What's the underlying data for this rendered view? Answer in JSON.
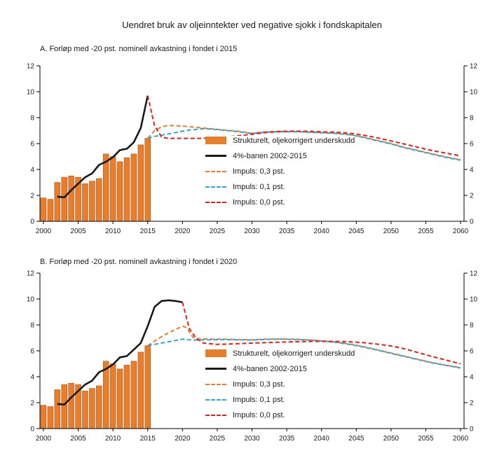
{
  "title": "Uendret bruk av oljeinntekter ved negative sjokk i fondskapitalen",
  "chart_data": [
    {
      "type": "bar+line",
      "panel_label": "A. Forløp med -20 pst. nominell avkastning i fondet i 2015",
      "ylim": [
        0,
        12
      ],
      "y_ticks": [
        0,
        2,
        4,
        6,
        8,
        10,
        12
      ],
      "x_ticks": [
        2000,
        2005,
        2010,
        2015,
        2020,
        2025,
        2030,
        2035,
        2040,
        2045,
        2050,
        2055,
        2060
      ],
      "legend_position": "inside-center",
      "grid": false,
      "bars": {
        "name": "Strukturelt, oljekorrigert underskudd",
        "color": "#e87d2b",
        "border": "#a9561a",
        "years": [
          2000,
          2001,
          2002,
          2003,
          2004,
          2005,
          2006,
          2007,
          2008,
          2009,
          2010,
          2011,
          2012,
          2013,
          2014,
          2015
        ],
        "values": [
          1.8,
          1.7,
          3.0,
          3.4,
          3.5,
          3.4,
          2.9,
          3.1,
          3.3,
          5.2,
          5.0,
          4.6,
          4.9,
          5.2,
          5.9,
          6.4
        ]
      },
      "series": [
        {
          "name": "4%-banen 2002-2015",
          "color": "#1a1a1a",
          "dash": "",
          "width": 2.6,
          "x": [
            2002,
            2003,
            2004,
            2005,
            2006,
            2007,
            2008,
            2009,
            2010,
            2011,
            2012,
            2013,
            2014,
            2015
          ],
          "y": [
            1.9,
            1.85,
            2.4,
            2.9,
            3.4,
            3.7,
            4.35,
            4.6,
            4.95,
            5.5,
            5.6,
            6.1,
            7.2,
            9.7
          ]
        },
        {
          "name": "Impuls: 0,3 pst.",
          "color": "#e87d2b",
          "dash": "6 3.5",
          "width": 2,
          "x": [
            2015,
            2016,
            2017,
            2018,
            2020,
            2022,
            2024,
            2026,
            2028,
            2030,
            2032,
            2034,
            2036,
            2038,
            2040,
            2042,
            2044,
            2046,
            2048,
            2050,
            2052,
            2054,
            2056,
            2058,
            2060
          ],
          "y": [
            6.4,
            7.0,
            7.3,
            7.4,
            7.35,
            7.25,
            7.15,
            7.05,
            6.95,
            6.8,
            6.9,
            6.95,
            6.95,
            6.9,
            6.85,
            6.8,
            6.7,
            6.5,
            6.25,
            6.0,
            5.7,
            5.45,
            5.2,
            4.95,
            4.75
          ]
        },
        {
          "name": "Impuls: 0,1 pst.",
          "color": "#2aa7dd",
          "dash": "6 3.5",
          "width": 2,
          "x": [
            2015,
            2016,
            2017,
            2018,
            2019,
            2020,
            2021,
            2022,
            2023,
            2024,
            2026,
            2028,
            2030,
            2032,
            2034,
            2036,
            2038,
            2040,
            2042,
            2044,
            2046,
            2048,
            2050,
            2052,
            2054,
            2056,
            2058,
            2060
          ],
          "y": [
            6.4,
            6.55,
            6.65,
            6.75,
            6.85,
            6.95,
            7.05,
            7.1,
            7.15,
            7.12,
            7.02,
            6.92,
            6.78,
            6.88,
            6.92,
            6.92,
            6.88,
            6.83,
            6.78,
            6.68,
            6.48,
            6.22,
            5.97,
            5.67,
            5.42,
            5.17,
            4.92,
            4.72
          ]
        },
        {
          "name": "Impuls: 0,0 pst.",
          "color": "#e32119",
          "dash": "6 3.5",
          "width": 2,
          "x": [
            2015,
            2016,
            2017,
            2018,
            2020,
            2022,
            2024,
            2026,
            2028,
            2030,
            2032,
            2034,
            2036,
            2038,
            2040,
            2042,
            2044,
            2046,
            2048,
            2050,
            2052,
            2054,
            2056,
            2058,
            2060
          ],
          "y": [
            9.7,
            7.35,
            6.5,
            6.4,
            6.4,
            6.4,
            6.42,
            6.5,
            6.6,
            6.72,
            6.85,
            6.92,
            6.95,
            6.95,
            6.9,
            6.88,
            6.8,
            6.65,
            6.45,
            6.2,
            5.95,
            5.7,
            5.45,
            5.25,
            5.05
          ]
        }
      ]
    },
    {
      "type": "bar+line",
      "panel_label": "B. Forløp med -20 pst. nominell avkastning i fondet i 2020",
      "ylim": [
        0,
        12
      ],
      "y_ticks": [
        0,
        2,
        4,
        6,
        8,
        10,
        12
      ],
      "x_ticks": [
        2000,
        2005,
        2010,
        2015,
        2020,
        2025,
        2030,
        2035,
        2040,
        2045,
        2050,
        2055,
        2060
      ],
      "legend_position": "inside-center",
      "grid": false,
      "bars": {
        "name": "Strukturelt, oljekorrigert underskudd",
        "color": "#e87d2b",
        "border": "#a9561a",
        "years": [
          2000,
          2001,
          2002,
          2003,
          2004,
          2005,
          2006,
          2007,
          2008,
          2009,
          2010,
          2011,
          2012,
          2013,
          2014,
          2015
        ],
        "values": [
          1.8,
          1.7,
          3.0,
          3.4,
          3.5,
          3.4,
          2.9,
          3.1,
          3.3,
          5.2,
          5.0,
          4.6,
          4.9,
          5.2,
          5.9,
          6.4
        ]
      },
      "series": [
        {
          "name": "4%-banen 2002-2015",
          "color": "#1a1a1a",
          "dash": "",
          "width": 2.6,
          "x": [
            2002,
            2003,
            2004,
            2005,
            2006,
            2007,
            2008,
            2009,
            2010,
            2011,
            2012,
            2013,
            2014,
            2015,
            2016,
            2017,
            2018,
            2019,
            2020
          ],
          "y": [
            1.9,
            1.85,
            2.4,
            2.9,
            3.4,
            3.7,
            4.35,
            4.6,
            4.95,
            5.5,
            5.6,
            6.1,
            6.6,
            7.9,
            9.4,
            9.85,
            9.9,
            9.85,
            9.75
          ]
        },
        {
          "name": "Impuls: 0,3 pst.",
          "color": "#e87d2b",
          "dash": "6 3.5",
          "width": 2,
          "x": [
            2015,
            2016,
            2017,
            2018,
            2019,
            2020,
            2020.6,
            2021.5,
            2022,
            2024,
            2026,
            2028,
            2030,
            2032,
            2034,
            2036,
            2038,
            2040,
            2042,
            2044,
            2046,
            2048,
            2050,
            2052,
            2054,
            2056,
            2058,
            2060
          ],
          "y": [
            6.4,
            6.75,
            7.1,
            7.4,
            7.65,
            7.9,
            7.8,
            7.05,
            6.95,
            6.9,
            6.9,
            6.87,
            6.85,
            6.9,
            6.92,
            6.9,
            6.85,
            6.78,
            6.68,
            6.53,
            6.33,
            6.08,
            5.83,
            5.58,
            5.33,
            5.08,
            4.88,
            4.7
          ]
        },
        {
          "name": "Impuls: 0,1 pst.",
          "color": "#2aa7dd",
          "dash": "6 3.5",
          "width": 2,
          "x": [
            2015,
            2016,
            2017,
            2018,
            2019,
            2020,
            2021,
            2022,
            2024,
            2026,
            2028,
            2030,
            2032,
            2034,
            2036,
            2038,
            2040,
            2042,
            2044,
            2046,
            2048,
            2050,
            2052,
            2054,
            2056,
            2058,
            2060
          ],
          "y": [
            6.4,
            6.5,
            6.6,
            6.7,
            6.8,
            6.9,
            6.85,
            6.83,
            6.85,
            6.87,
            6.85,
            6.83,
            6.88,
            6.9,
            6.88,
            6.83,
            6.76,
            6.66,
            6.5,
            6.3,
            6.06,
            5.8,
            5.56,
            5.31,
            5.06,
            4.87,
            4.68
          ]
        },
        {
          "name": "Impuls: 0,0 pst.",
          "color": "#e32119",
          "dash": "6 3.5",
          "width": 2,
          "x": [
            2020,
            2021,
            2022,
            2023,
            2025,
            2028,
            2030,
            2033,
            2036,
            2039,
            2042,
            2044,
            2046,
            2048,
            2050,
            2052,
            2054,
            2056,
            2058,
            2060
          ],
          "y": [
            9.75,
            7.7,
            6.95,
            6.6,
            6.5,
            6.55,
            6.6,
            6.65,
            6.7,
            6.73,
            6.73,
            6.7,
            6.63,
            6.52,
            6.38,
            6.15,
            5.85,
            5.55,
            5.27,
            5.0
          ]
        }
      ]
    }
  ]
}
